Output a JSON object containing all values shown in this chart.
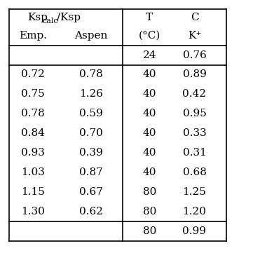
{
  "col_headers_row1_left": "Ksp",
  "col_headers_row1_sub": "calc",
  "col_headers_row1_right": "/Ksp",
  "col_headers_row1_T": "T",
  "col_headers_row1_C": "C",
  "col_headers_row2": [
    "Emp.",
    "Aspen",
    "(°C)",
    "K⁺"
  ],
  "rows": [
    [
      "",
      "",
      "24",
      "0.76"
    ],
    [
      "0.72",
      "0.78",
      "40",
      "0.89"
    ],
    [
      "0.75",
      "1.26",
      "40",
      "0.42"
    ],
    [
      "0.78",
      "0.59",
      "40",
      "0.95"
    ],
    [
      "0.84",
      "0.70",
      "40",
      "0.33"
    ],
    [
      "0.93",
      "0.39",
      "40",
      "0.31"
    ],
    [
      "1.03",
      "0.87",
      "40",
      "0.68"
    ],
    [
      "1.15",
      "0.67",
      "80",
      "1.25"
    ],
    [
      "1.30",
      "0.62",
      "80",
      "1.20"
    ],
    [
      "",
      "",
      "80",
      "0.99"
    ]
  ],
  "background_color": "#ffffff",
  "text_color": "#000000",
  "line_color": "#000000",
  "font_size": 11,
  "header_font_size": 11
}
